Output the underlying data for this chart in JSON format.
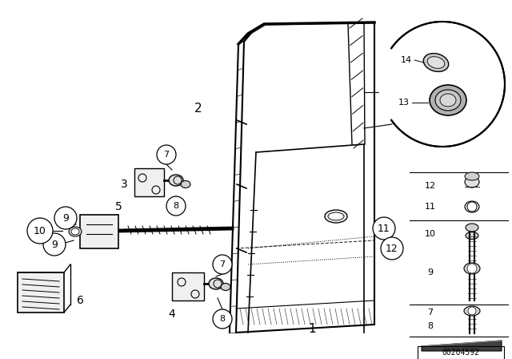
{
  "bg_color": "#ffffff",
  "line_color": "#000000",
  "fig_width": 6.4,
  "fig_height": 4.48,
  "dpi": 100,
  "image_number": "00204592"
}
